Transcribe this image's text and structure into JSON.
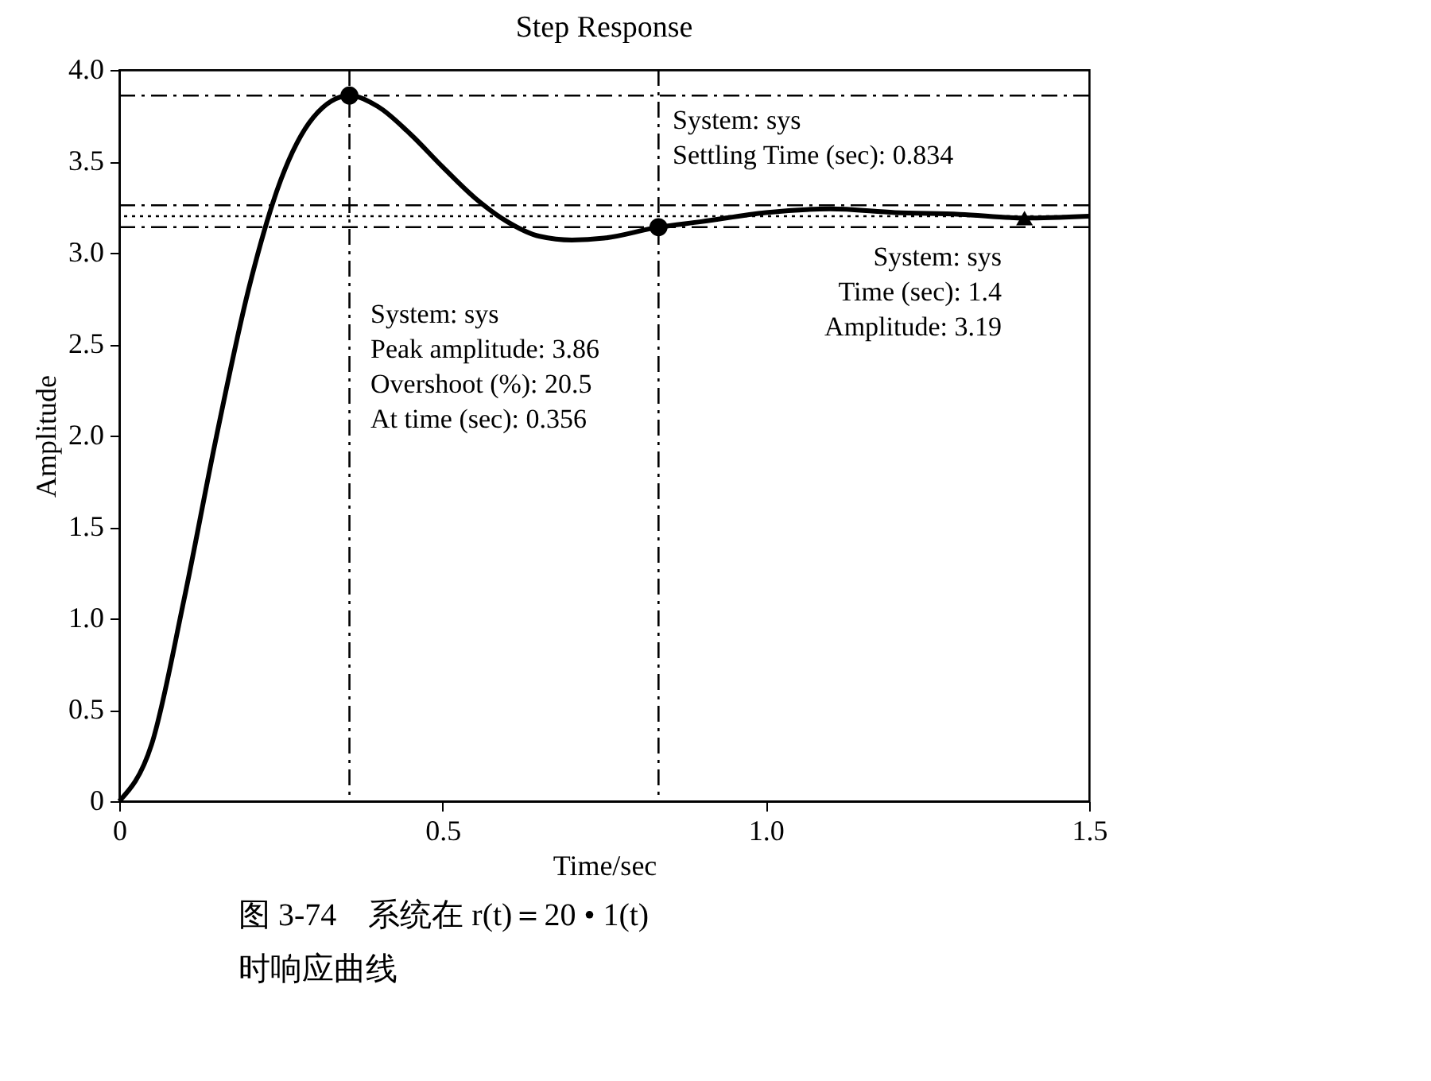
{
  "chart_data": {
    "type": "line",
    "title": "Step Response",
    "xlabel": "Time/sec",
    "ylabel": "Amplitude",
    "xlim": [
      0,
      1.5
    ],
    "xticks": [
      0,
      0.5,
      {
        "value": 1,
        "label": "1.0"
      },
      1.5
    ],
    "ylim": [
      0,
      4
    ],
    "yticks": [
      0,
      0.5,
      {
        "value": 1,
        "label": "1.0"
      },
      1.5,
      {
        "value": 2,
        "label": "2.0"
      },
      2.5,
      {
        "value": 3,
        "label": "3.0"
      },
      3.5,
      {
        "value": 4,
        "label": "4.0"
      }
    ],
    "grid": false,
    "series": [
      {
        "color": "#000000",
        "marker": "none",
        "x": [
          0,
          0.05,
          0.1,
          0.15,
          0.2,
          0.25,
          0.3,
          0.356,
          0.4,
          0.45,
          0.5,
          0.55,
          0.6,
          0.65,
          0.7,
          0.75,
          0.834,
          0.9,
          1.0,
          1.1,
          1.2,
          1.3,
          1.4,
          1.5
        ],
        "values": [
          0,
          0.31,
          1.1,
          1.99,
          2.8,
          3.4,
          3.74,
          3.86,
          3.8,
          3.65,
          3.47,
          3.3,
          3.17,
          3.09,
          3.07,
          3.08,
          3.14,
          3.17,
          3.22,
          3.24,
          3.22,
          3.21,
          3.19,
          3.2
        ]
      },
      {
        "type": "scatter",
        "color": "#000000",
        "marker": "circle",
        "x": [
          0.356,
          0.834
        ],
        "values": [
          3.86,
          3.14
        ]
      },
      {
        "type": "scatter",
        "color": "#000000",
        "marker": "triangle",
        "x": [
          1.4
        ],
        "values": [
          3.19
        ]
      }
    ],
    "ref_lines": [
      {
        "axis": "y",
        "value": 3.86,
        "line_style": "dashed",
        "color": "#000000"
      },
      {
        "axis": "x",
        "value": 0.356,
        "line_style": "dashed",
        "color": "#000000"
      },
      {
        "axis": "x",
        "value": 0.834,
        "line_style": "dashed",
        "color": "#000000"
      },
      {
        "axis": "y",
        "value": 3.26,
        "line_style": "dashed",
        "color": "#000000"
      },
      {
        "axis": "y",
        "value": 3.2,
        "line_style": "dotted",
        "color": "#000000"
      },
      {
        "axis": "y",
        "value": 3.14,
        "line_style": "dashed",
        "color": "#000000"
      }
    ],
    "annotations": [
      "System: sys\nPeak amplitude: 3.86\nOvershoot (%): 20.5\nAt time (sec): 0.356",
      "System: sys\nSettling Time (sec): 0.834",
      "System: sys\nTime (sec): 1.4\nAmplitude: 3.19",
      "图 3-74　系统在 r(t)＝20 • 1(t)",
      "时响应曲线"
    ]
  }
}
